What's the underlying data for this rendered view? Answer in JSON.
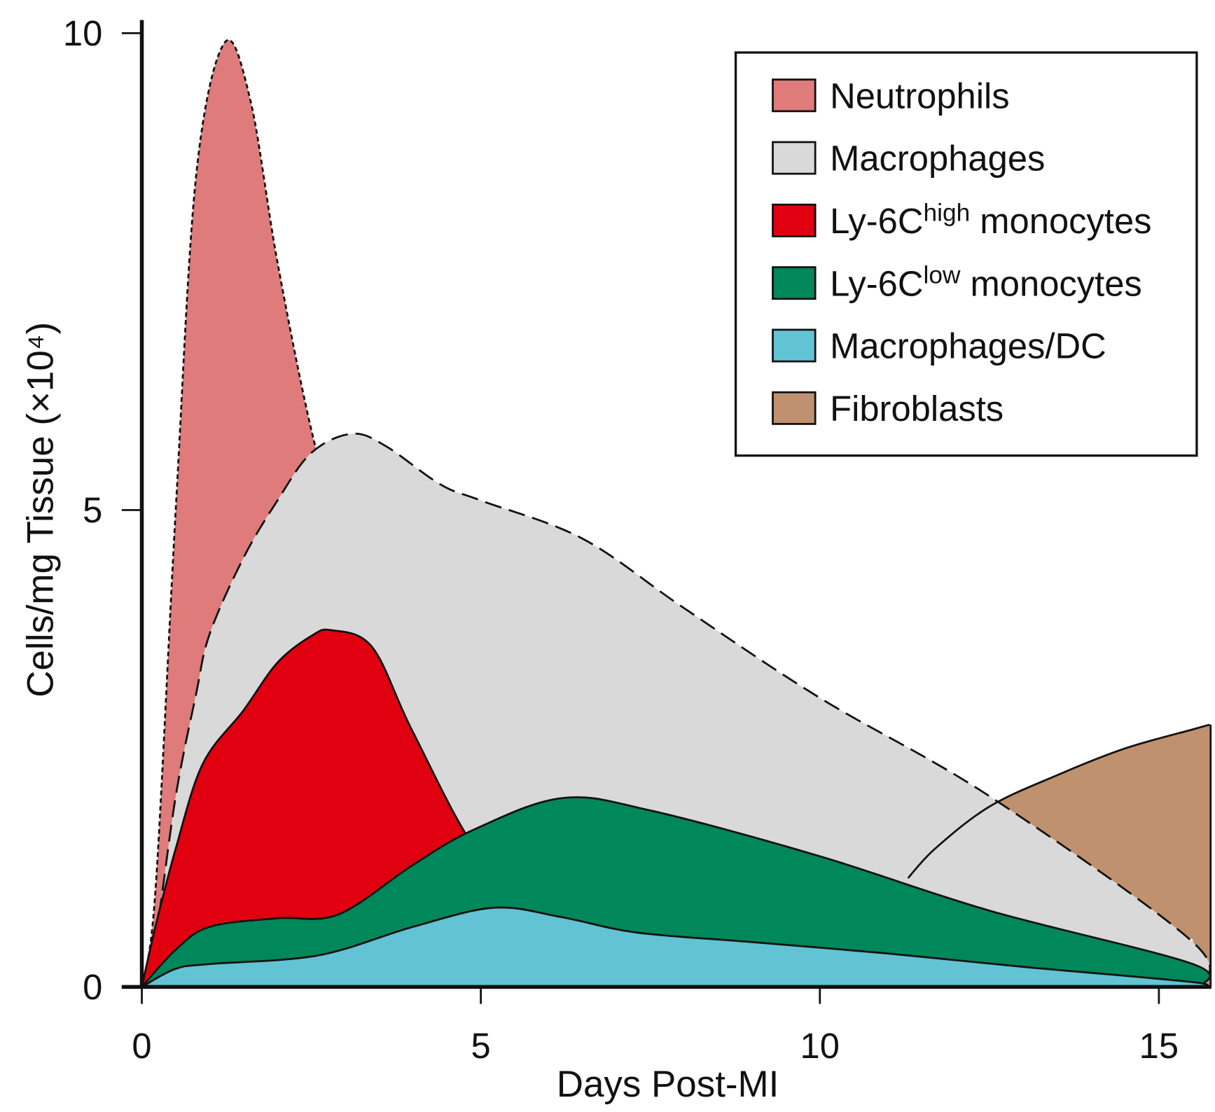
{
  "chart_data": {
    "type": "area",
    "title": "",
    "xlabel": "Days Post-MI",
    "ylabel": "Cells/mg Tissue (×10⁴)",
    "xlim": [
      0,
      15.75
    ],
    "ylim": [
      0,
      10
    ],
    "xticks": [
      "0",
      "5",
      "10",
      "15"
    ],
    "yticks": [
      "0",
      "5",
      "10"
    ],
    "grid": false,
    "legend_position": "top-right",
    "series": [
      {
        "key": "neutrophils",
        "name": "Neutrophils",
        "label_prefix": "Neutrophils",
        "label_sup": "",
        "label_suffix": "",
        "color": "#df7b7b",
        "line": "dotted",
        "x": [
          0,
          0.2,
          0.5,
          0.8,
          1.22,
          1.6,
          2.0,
          2.5,
          2.95,
          3.45,
          4.0,
          5.0,
          6.0
        ],
        "y": [
          0,
          1.0,
          5.0,
          8.5,
          9.9,
          9.3,
          7.6,
          5.84,
          4.7,
          3.56,
          2.4,
          0.8,
          0
        ]
      },
      {
        "key": "fibroblasts",
        "name": "Fibroblasts",
        "label_prefix": "Fibroblasts",
        "label_sup": "",
        "label_suffix": "",
        "color": "#c0916e",
        "line": "solid",
        "x": [
          11.3,
          11.7,
          12.5,
          13.5,
          14.5,
          15.5,
          15.75
        ],
        "y": [
          1.14,
          1.45,
          1.89,
          2.22,
          2.5,
          2.7,
          2.75
        ]
      },
      {
        "key": "macrophages",
        "name": "Macrophages",
        "label_prefix": "Macrophages",
        "label_sup": "",
        "label_suffix": "",
        "color": "#d9d9d9",
        "line": "dashed",
        "x": [
          0,
          0.2,
          0.5,
          0.8,
          1.0,
          1.5,
          2.0,
          2.5,
          3.1,
          3.6,
          4.4,
          5.0,
          6.5,
          8.0,
          10.0,
          12.5,
          15.5,
          15.6
        ],
        "y": [
          0,
          0.5,
          2.0,
          3.07,
          3.7,
          4.5,
          5.1,
          5.6,
          5.8,
          5.67,
          5.27,
          5.1,
          4.7,
          3.97,
          3.03,
          2.0,
          0.47,
          0
        ]
      },
      {
        "key": "ly6c_high",
        "name": "Ly-6Chigh monocytes",
        "label_prefix": "Ly-6C",
        "label_sup": "high",
        "label_suffix": " monocytes",
        "color": "#e0000f",
        "line": "solid",
        "x": [
          0,
          0.2,
          0.5,
          0.9,
          1.5,
          2.0,
          2.5,
          2.8,
          3.4,
          4.0,
          5.0,
          6.1,
          7.0,
          8.0
        ],
        "y": [
          0,
          0.63,
          1.45,
          2.34,
          2.9,
          3.4,
          3.68,
          3.74,
          3.56,
          2.67,
          1.37,
          0.76,
          0.3,
          0
        ]
      },
      {
        "key": "ly6c_low",
        "name": "Ly-6Clow monocytes",
        "label_prefix": "Ly-6C",
        "label_sup": "low",
        "label_suffix": " monocytes",
        "color": "#00875a",
        "line": "solid",
        "x": [
          0,
          0.5,
          1.0,
          2.0,
          2.9,
          4.0,
          4.9,
          6.2,
          7.5,
          10.0,
          12.5,
          15.5,
          15.6
        ],
        "y": [
          0,
          0.39,
          0.63,
          0.72,
          0.76,
          1.28,
          1.65,
          1.98,
          1.85,
          1.37,
          0.8,
          0.24,
          0
        ]
      },
      {
        "key": "macrophages_dc",
        "name": "Macrophages/DC",
        "label_prefix": "Macrophages/DC",
        "label_sup": "",
        "label_suffix": "",
        "color": "#62c3d4",
        "line": "solid",
        "x": [
          0,
          0.5,
          1.0,
          2.6,
          4.0,
          5.2,
          6.2,
          7.3,
          9.0,
          11.0,
          13.0,
          15.5,
          15.6
        ],
        "y": [
          0,
          0.19,
          0.24,
          0.33,
          0.63,
          0.83,
          0.73,
          0.57,
          0.47,
          0.35,
          0.21,
          0.05,
          0
        ]
      }
    ],
    "legend_order": [
      "neutrophils",
      "macrophages",
      "ly6c_high",
      "ly6c_low",
      "macrophages_dc",
      "fibroblasts"
    ]
  }
}
